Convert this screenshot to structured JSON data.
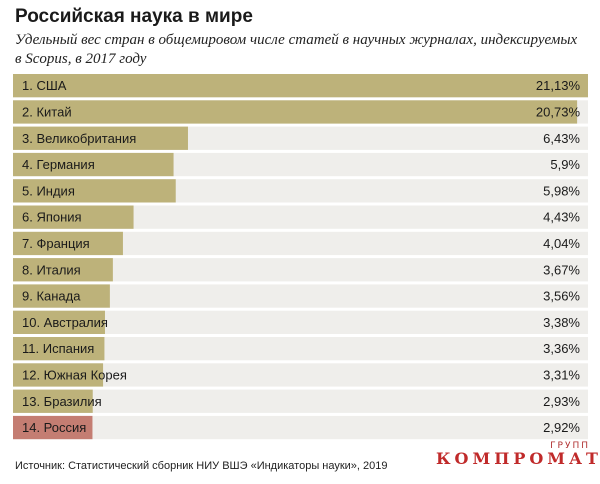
{
  "header": {
    "title": "Российская наука в мире",
    "subtitle": "Удельный вес стран в общемировом числе статей в научных журналах, индексируемых в Scopus, в 2017 году"
  },
  "footer": {
    "source": "Источник: Статистический сборник НИУ ВШЭ «Индикаторы науки», 2019"
  },
  "watermark": {
    "main": "КОМПРОМАТ",
    "small": "ГРУПП"
  },
  "colors": {
    "bar": "#bdb27a",
    "highlight_bar": "#c47d72",
    "row_background": "#efeeeb",
    "watermark": "#c02a2a"
  },
  "chart_data": {
    "type": "bar",
    "orientation": "horizontal",
    "title": "Российская наука в мире",
    "subtitle": "Удельный вес стран в общемировом числе статей в научных журналах, индексируемых в Scopus, в 2017 году",
    "categories": [
      "1. США",
      "2. Китай",
      "3. Великобритания",
      "4. Германия",
      "5. Индия",
      "6. Япония",
      "7. Франция",
      "8. Италия",
      "9. Канада",
      "10. Австралия",
      "11. Испания",
      "12. Южная Корея",
      "13. Бразилия",
      "14. Россия"
    ],
    "values": [
      21.13,
      20.73,
      6.43,
      5.9,
      5.98,
      4.43,
      4.04,
      3.67,
      3.56,
      3.38,
      3.36,
      3.31,
      2.93,
      2.92
    ],
    "value_labels": [
      "21,13%",
      "20,73%",
      "6,43%",
      "5,9%",
      "5,98%",
      "4,43%",
      "4,04%",
      "3,67%",
      "3,56%",
      "3,38%",
      "3,36%",
      "3,31%",
      "2,93%",
      "2,92%"
    ],
    "unit": "%",
    "xlim": [
      0,
      21.13
    ],
    "highlight_index": 13,
    "grid": false,
    "legend": "none"
  }
}
